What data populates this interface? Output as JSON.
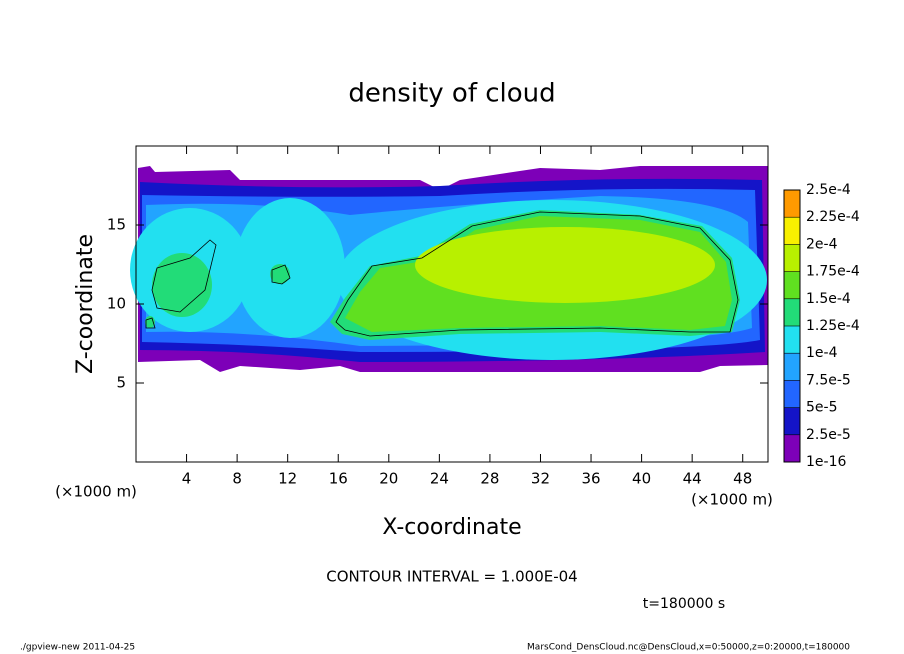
{
  "chart_data": {
    "type": "contour",
    "title": "density of cloud",
    "xlabel": "X-coordinate",
    "ylabel": "Z-coordinate",
    "xunit": "(×1000 m)",
    "yunit": "(×1000 m)",
    "xlim": [
      0,
      50
    ],
    "xticks": [
      4,
      8,
      12,
      16,
      20,
      24,
      28,
      32,
      36,
      40,
      44,
      48
    ],
    "ylim": [
      0,
      20
    ],
    "yticks": [
      5,
      10,
      15
    ],
    "colorbar": {
      "ticks": [
        {
          "value": 1e-16,
          "label": "1e-16"
        },
        {
          "value": 2.5e-05,
          "label": "2.5e-5"
        },
        {
          "value": 5e-05,
          "label": "5e-5"
        },
        {
          "value": 7.5e-05,
          "label": "7.5e-5"
        },
        {
          "value": 0.0001,
          "label": "1e-4"
        },
        {
          "value": 0.000125,
          "label": "1.25e-4"
        },
        {
          "value": 0.00015,
          "label": "1.5e-4"
        },
        {
          "value": 0.000175,
          "label": "1.75e-4"
        },
        {
          "value": 0.0002,
          "label": "2e-4"
        },
        {
          "value": 0.000225,
          "label": "2.25e-4"
        },
        {
          "value": 0.00025,
          "label": "2.5e-4"
        }
      ],
      "colors": [
        "#7d00b8",
        "#1414c8",
        "#2266ff",
        "#22a4ff",
        "#22e0f0",
        "#22dc78",
        "#60e020",
        "#b8f000",
        "#f8f000",
        "#ff9a00",
        "#ff8888"
      ]
    },
    "contour_interval": "CONTOUR INTERVAL = 1.000E-04",
    "time": "t=180000 s",
    "footer_left": "./gpview-new  2011-04-25",
    "footer_right": "MarsCond_DensCloud.nc@DensCloud,x=0:50000,z=0:20000,t=180000"
  }
}
